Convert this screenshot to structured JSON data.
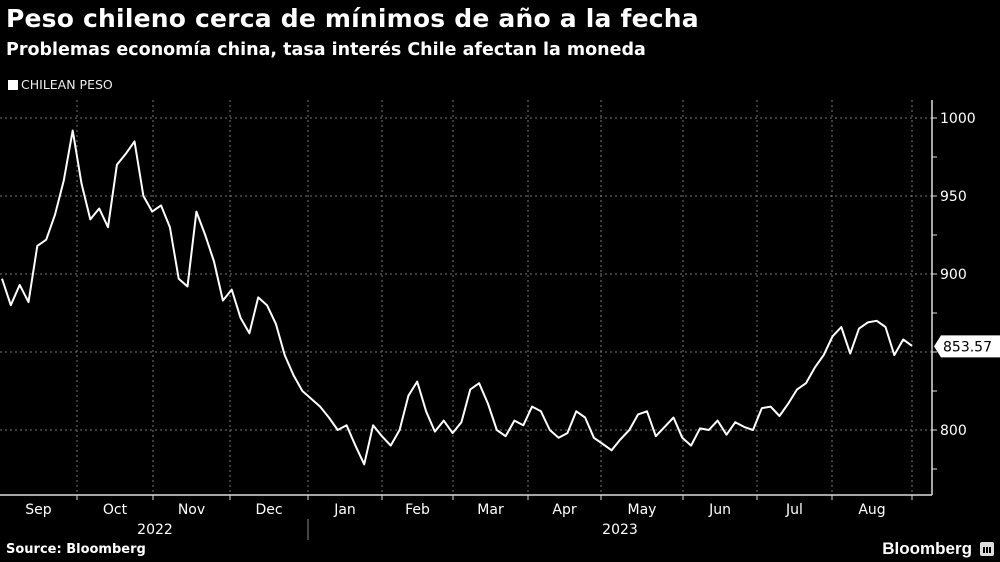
{
  "header": {
    "title": "Peso chileno cerca de mínimos de año a la fecha",
    "subtitle": "Problemas economía china, tasa interés Chile afectan la moneda"
  },
  "legend": {
    "label": "CHILEAN PESO",
    "color": "#ffffff"
  },
  "footer": {
    "source": "Source: Bloomberg",
    "brand": "Bloomberg"
  },
  "last_value_label": "853.57",
  "chart_data": {
    "type": "line",
    "title": "Peso chileno cerca de mínimos de año a la fecha",
    "subtitle": "Problemas economía china, tasa interés Chile afectan la moneda",
    "xlabel": "",
    "ylabel": "",
    "x_tick_labels": [
      "Sep",
      "Oct",
      "Nov",
      "Dec",
      "Jan",
      "Feb",
      "Mar",
      "Apr",
      "May",
      "Jun",
      "Jul",
      "Aug"
    ],
    "x_year_labels": [
      "2022",
      "2023"
    ],
    "y_ticks": [
      800,
      900,
      950,
      1000
    ],
    "ylim": [
      770,
      1010
    ],
    "y_axis_position": "right",
    "grid": true,
    "legend_position": "top-left",
    "last_value": 853.57,
    "series": [
      {
        "name": "CHILEAN PESO",
        "color": "#ffffff",
        "x": [
          "2022-08-29",
          "2022-09-01",
          "2022-09-05",
          "2022-09-08",
          "2022-09-12",
          "2022-09-15",
          "2022-09-19",
          "2022-09-22",
          "2022-09-26",
          "2022-09-29",
          "2022-10-03",
          "2022-10-06",
          "2022-10-10",
          "2022-10-13",
          "2022-10-17",
          "2022-10-20",
          "2022-10-24",
          "2022-10-27",
          "2022-10-31",
          "2022-11-03",
          "2022-11-07",
          "2022-11-10",
          "2022-11-14",
          "2022-11-17",
          "2022-11-21",
          "2022-11-24",
          "2022-11-28",
          "2022-12-01",
          "2022-12-05",
          "2022-12-08",
          "2022-12-12",
          "2022-12-15",
          "2022-12-19",
          "2022-12-22",
          "2022-12-26",
          "2022-12-29",
          "2023-01-02",
          "2023-01-05",
          "2023-01-09",
          "2023-01-12",
          "2023-01-16",
          "2023-01-19",
          "2023-01-23",
          "2023-01-26",
          "2023-01-30",
          "2023-02-02",
          "2023-02-06",
          "2023-02-09",
          "2023-02-13",
          "2023-02-16",
          "2023-02-20",
          "2023-02-23",
          "2023-02-27",
          "2023-03-02",
          "2023-03-06",
          "2023-03-09",
          "2023-03-13",
          "2023-03-16",
          "2023-03-20",
          "2023-03-23",
          "2023-03-27",
          "2023-03-30",
          "2023-04-03",
          "2023-04-06",
          "2023-04-10",
          "2023-04-13",
          "2023-04-17",
          "2023-04-20",
          "2023-04-24",
          "2023-04-27",
          "2023-05-01",
          "2023-05-04",
          "2023-05-08",
          "2023-05-11",
          "2023-05-15",
          "2023-05-18",
          "2023-05-22",
          "2023-05-25",
          "2023-05-29",
          "2023-06-01",
          "2023-06-05",
          "2023-06-08",
          "2023-06-12",
          "2023-06-15",
          "2023-06-19",
          "2023-06-22",
          "2023-06-26",
          "2023-06-29",
          "2023-07-03",
          "2023-07-06",
          "2023-07-10",
          "2023-07-13",
          "2023-07-17",
          "2023-07-20",
          "2023-07-24",
          "2023-07-27",
          "2023-07-31",
          "2023-08-03",
          "2023-08-07",
          "2023-08-10",
          "2023-08-14",
          "2023-08-17",
          "2023-08-21",
          "2023-08-24"
        ],
        "values": [
          897,
          880,
          893,
          882,
          918,
          922,
          938,
          960,
          992,
          958,
          935,
          942,
          930,
          970,
          977,
          985,
          950,
          940,
          944,
          930,
          897,
          892,
          940,
          925,
          908,
          883,
          890,
          872,
          862,
          885,
          880,
          868,
          848,
          835,
          825,
          820,
          815,
          808,
          800,
          803,
          790,
          778,
          803,
          796,
          790,
          800,
          822,
          831,
          812,
          799,
          806,
          798,
          805,
          826,
          830,
          817,
          800,
          796,
          806,
          803,
          815,
          812,
          800,
          795,
          798,
          812,
          808,
          795,
          791,
          787,
          794,
          800,
          810,
          812,
          796,
          802,
          808,
          795,
          790,
          801,
          800,
          806,
          797,
          805,
          802,
          800,
          814,
          815,
          809,
          817,
          826,
          830,
          840,
          848,
          860,
          866,
          849,
          865,
          869,
          870,
          866,
          848,
          858,
          854
        ]
      }
    ]
  }
}
